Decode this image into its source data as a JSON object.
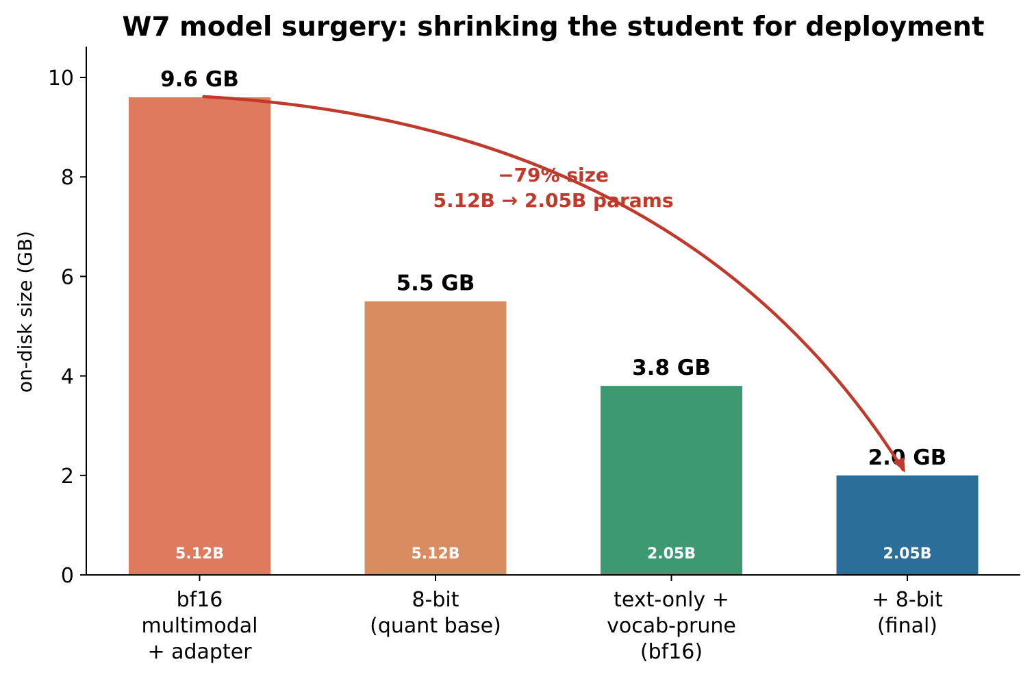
{
  "chart_data": {
    "type": "bar",
    "title": "W7 model surgery: shrinking the student for deployment",
    "ylabel": "on-disk size (GB)",
    "xlabel": "",
    "ylim": [
      0,
      10.6
    ],
    "yticks": [
      0,
      2,
      4,
      6,
      8,
      10
    ],
    "categories": [
      [
        "bf16",
        "multimodal",
        "+ adapter"
      ],
      [
        "8-bit",
        "(quant base)"
      ],
      [
        "text-only +",
        "vocab-prune",
        "(bf16)"
      ],
      [
        "+ 8-bit",
        "(final)"
      ]
    ],
    "values": [
      9.6,
      5.5,
      3.8,
      2.0
    ],
    "value_labels": [
      "9.6 GB",
      "5.5 GB",
      "3.8 GB",
      "2.0 GB"
    ],
    "param_labels": [
      "5.12B",
      "5.12B",
      "2.05B",
      "2.05B"
    ],
    "colors": [
      "#e07a5f",
      "#d88c60",
      "#3d9970",
      "#2c6e9a"
    ],
    "annotation": {
      "lines": [
        "−79% size",
        "5.12B → 2.05B params"
      ],
      "color": "#c0392b",
      "from_bar": 0,
      "to_bar": 3
    },
    "grid": false,
    "spines": "left-bottom"
  }
}
